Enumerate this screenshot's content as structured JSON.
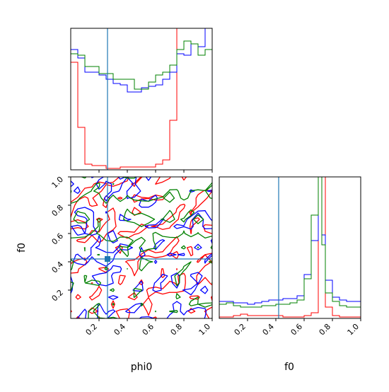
{
  "chart_data": {
    "type": "corner",
    "parameters": [
      "phi0",
      "f0"
    ],
    "truth": {
      "phi0": 0.26,
      "f0": 0.42
    },
    "series_colors": [
      "#ff0000",
      "#0000ff",
      "#008000"
    ],
    "accent_color": "#1f77b4",
    "panels": {
      "phi0_hist": {
        "type": "step-histogram",
        "xlim": [
          0.0,
          1.0
        ],
        "bins": [
          0.0,
          0.05,
          0.1,
          0.15,
          0.2,
          0.25,
          0.3,
          0.35,
          0.4,
          0.45,
          0.5,
          0.55,
          0.6,
          0.65,
          0.7,
          0.75,
          0.8,
          0.85,
          0.9,
          0.95,
          1.0
        ],
        "series": [
          {
            "color": "#ff0000",
            "values": [
              0.76,
              0.3,
              0.04,
              0.03,
              0.03,
              0.01,
              0.01,
              0.02,
              0.02,
              0.02,
              0.02,
              0.02,
              0.04,
              0.07,
              0.35,
              1.05,
              1.05,
              1.05,
              1.05,
              1.05
            ]
          },
          {
            "color": "#0000ff",
            "values": [
              0.85,
              0.79,
              0.69,
              0.69,
              0.67,
              0.64,
              0.61,
              0.6,
              0.55,
              0.55,
              0.58,
              0.59,
              0.6,
              0.64,
              0.69,
              0.82,
              0.81,
              0.89,
              0.87,
              1.05
            ]
          },
          {
            "color": "#008000",
            "values": [
              0.82,
              0.81,
              0.73,
              0.73,
              0.68,
              0.68,
              0.64,
              0.64,
              0.64,
              0.57,
              0.57,
              0.62,
              0.67,
              0.69,
              0.74,
              0.85,
              0.91,
              0.89,
              0.81,
              0.85
            ]
          }
        ]
      },
      "f0_hist": {
        "type": "step-histogram",
        "xlim": [
          0.0,
          1.0
        ],
        "ticks": [
          0.2,
          0.4,
          0.6,
          0.8,
          1.0
        ],
        "tick_labels": [
          "0.2",
          "0.4",
          "0.6",
          "0.8",
          "1.0"
        ],
        "bins": [
          0.0,
          0.05,
          0.1,
          0.15,
          0.2,
          0.25,
          0.3,
          0.35,
          0.4,
          0.45,
          0.5,
          0.55,
          0.6,
          0.65,
          0.7,
          0.725,
          0.75,
          0.8,
          0.85,
          0.9,
          0.95,
          1.0
        ],
        "series": [
          {
            "color": "#ff0000",
            "values": [
              0.01,
              0.01,
              0.02,
              0.03,
              0.02,
              0.02,
              0.02,
              0.02,
              0.02,
              0.01,
              0.01,
              0.01,
              0.02,
              0.04,
              1.05,
              1.05,
              0.08,
              0.02,
              0.01,
              0.01,
              0.01
            ]
          },
          {
            "color": "#0000ff",
            "values": [
              0.12,
              0.12,
              0.11,
              0.11,
              0.1,
              0.11,
              0.12,
              0.13,
              0.13,
              0.14,
              0.14,
              0.16,
              0.31,
              0.55,
              1.05,
              0.59,
              0.27,
              0.15,
              0.13,
              0.12,
              0.12
            ]
          },
          {
            "color": "#008000",
            "values": [
              0.1,
              0.11,
              0.09,
              0.08,
              0.08,
              0.08,
              0.09,
              0.09,
              0.1,
              0.1,
              0.11,
              0.13,
              0.28,
              0.73,
              1.05,
              0.52,
              0.18,
              0.12,
              0.09,
              0.08,
              0.08
            ]
          }
        ]
      },
      "joint": {
        "type": "contour",
        "x_param": "phi0",
        "y_param": "f0",
        "xlim": [
          0.0,
          1.0
        ],
        "ylim": [
          0.0,
          1.0
        ],
        "x_ticks": [
          0.2,
          0.4,
          0.6,
          0.8,
          1.0
        ],
        "x_tick_labels": [
          "0.2",
          "0.4",
          "0.6",
          "0.8",
          "1.0"
        ],
        "y_ticks": [
          0.2,
          0.4,
          0.6,
          0.8,
          1.0
        ],
        "y_tick_labels": [
          "0.2",
          "0.4",
          "0.6",
          "0.8",
          "1.0"
        ]
      }
    }
  }
}
